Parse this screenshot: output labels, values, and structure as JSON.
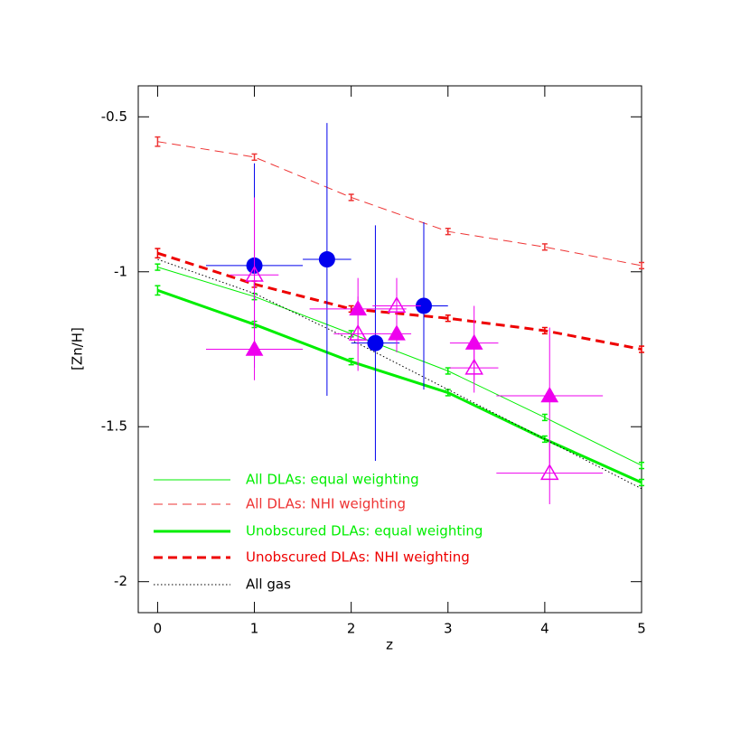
{
  "chart_data": {
    "type": "line",
    "xlabel": "z",
    "ylabel": "[Zn/H]",
    "xlim": [
      -0.2,
      5.0
    ],
    "ylim": [
      -2.1,
      -0.4
    ],
    "xticks": [
      0,
      1,
      2,
      3,
      4,
      5
    ],
    "yticks": [
      -0.5,
      -1,
      -1.5,
      -2
    ],
    "legend": "lower left",
    "series": [
      {
        "name": "All DLAs: equal weighting",
        "color": "#00ee00",
        "style": "line",
        "width": 1,
        "dash": "solid",
        "x": [
          0,
          1,
          2,
          3,
          4,
          5
        ],
        "values": [
          -0.985,
          -1.08,
          -1.2,
          -1.32,
          -1.47,
          -1.625
        ],
        "errors": [
          0.01,
          0.01,
          0.01,
          0.01,
          0.01,
          0.01
        ]
      },
      {
        "name": "All DLAs: NHI weighting",
        "color": "#ee3333",
        "style": "line",
        "width": 1,
        "dash": "dashed",
        "x": [
          0,
          1,
          2,
          3,
          4,
          5
        ],
        "values": [
          -0.58,
          -0.63,
          -0.76,
          -0.87,
          -0.92,
          -0.98
        ],
        "errors": [
          0.015,
          0.01,
          0.01,
          0.01,
          0.01,
          0.01
        ]
      },
      {
        "name": "Unobscured DLAs: equal weighting",
        "color": "#00ee00",
        "style": "line",
        "width": 3,
        "dash": "solid",
        "x": [
          0,
          1,
          2,
          3,
          4,
          5
        ],
        "values": [
          -1.06,
          -1.17,
          -1.29,
          -1.39,
          -1.54,
          -1.68
        ],
        "errors": [
          0.015,
          0.01,
          0.01,
          0.01,
          0.01,
          0.01
        ]
      },
      {
        "name": "Unobscured DLAs: NHI weighting",
        "color": "#ee0000",
        "style": "line",
        "width": 3,
        "dash": "dashed",
        "x": [
          0,
          1,
          2,
          3,
          4,
          5
        ],
        "values": [
          -0.94,
          -1.04,
          -1.12,
          -1.15,
          -1.19,
          -1.25
        ],
        "errors": [
          0.015,
          0.01,
          0.01,
          0.01,
          0.01,
          0.01
        ]
      },
      {
        "name": "All gas",
        "color": "#000000",
        "style": "line",
        "width": 1,
        "dash": "dotted",
        "x": [
          0,
          1,
          2,
          3,
          4,
          5
        ],
        "values": [
          -0.96,
          -1.07,
          -1.22,
          -1.38,
          -1.54,
          -1.7
        ]
      },
      {
        "color": "#0000ee",
        "style": "points",
        "marker": "circle",
        "x": [
          1.0,
          1.75,
          2.25,
          2.75
        ],
        "values": [
          -0.98,
          -0.96,
          -1.23,
          -1.11
        ],
        "xerr": [
          0.5,
          0.25,
          0.25,
          0.25
        ],
        "yerr": [
          0.33,
          0.44,
          0.38,
          0.27
        ]
      },
      {
        "color": "#ee00ee",
        "style": "points",
        "marker": "triangle",
        "x": [
          1.0,
          2.07,
          2.47,
          3.27,
          4.05
        ],
        "values": [
          -1.25,
          -1.12,
          -1.2,
          -1.23,
          -1.4
        ],
        "xerr": [
          0.5,
          0.5,
          0.15,
          0.25,
          0.55
        ],
        "yerr": [
          0.1,
          0.1,
          0.06,
          0.12,
          0.22
        ]
      },
      {
        "color": "#ee00ee",
        "style": "points",
        "marker": "open-triangle",
        "x": [
          1.0,
          2.07,
          2.47,
          3.27,
          4.05
        ],
        "values": [
          -1.01,
          -1.2,
          -1.11,
          -1.31,
          -1.65
        ],
        "xerr": [
          0.25,
          0.25,
          0.25,
          0.25,
          0.55
        ],
        "yerr": [
          0.25,
          0.12,
          0.09,
          0.08,
          0.1
        ]
      }
    ]
  }
}
